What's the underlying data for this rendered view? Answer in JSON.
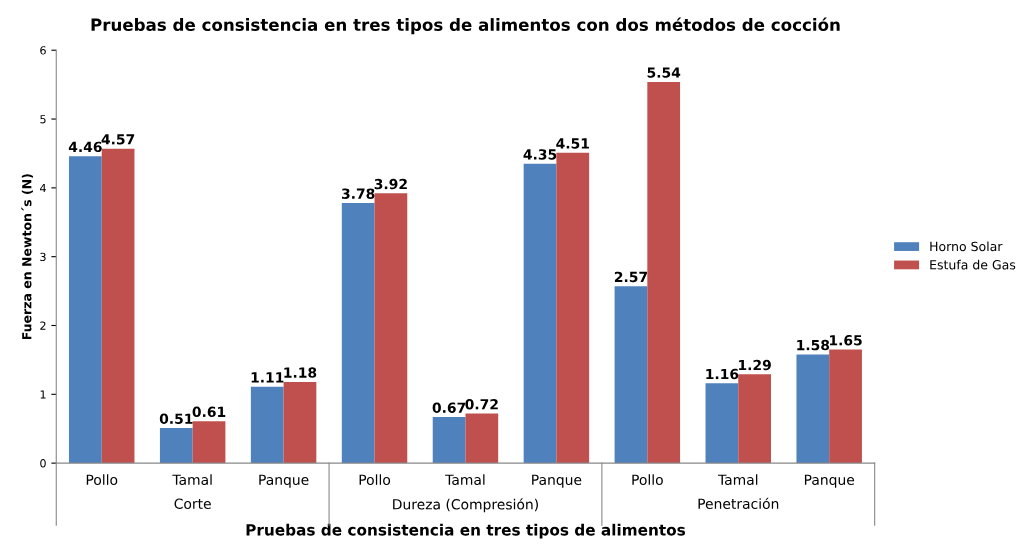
{
  "chart_data": {
    "type": "bar",
    "title": "Pruebas de consistencia en tres tipos de alimentos con dos métodos de cocción",
    "xlabel": "Pruebas de consistencia en tres tipos de alimentos",
    "ylabel": "Fuerza en Newton´s (N)",
    "categories": [
      "Pollo",
      "Tamal",
      "Panque",
      "Pollo",
      "Tamal",
      "Panque",
      "Pollo",
      "Tamal",
      "Panque"
    ],
    "series": [
      {
        "name": "Horno Solar",
        "color": "#4f81bd",
        "values": [
          4.46,
          0.51,
          1.11,
          3.78,
          0.67,
          4.35,
          2.57,
          1.16,
          1.58
        ]
      },
      {
        "name": "Estufa de Gas",
        "color": "#c0504d",
        "values": [
          4.57,
          0.61,
          1.18,
          3.92,
          0.72,
          4.51,
          5.54,
          1.29,
          1.65
        ]
      }
    ],
    "annotations": [
      "Corte",
      "Dureza (Compresión)",
      "Penetración"
    ],
    "ylim": [
      0,
      6
    ],
    "yticks": [
      0,
      1,
      2,
      3,
      4,
      5,
      6
    ],
    "grid": false,
    "legend": "right",
    "data_labels": true
  }
}
